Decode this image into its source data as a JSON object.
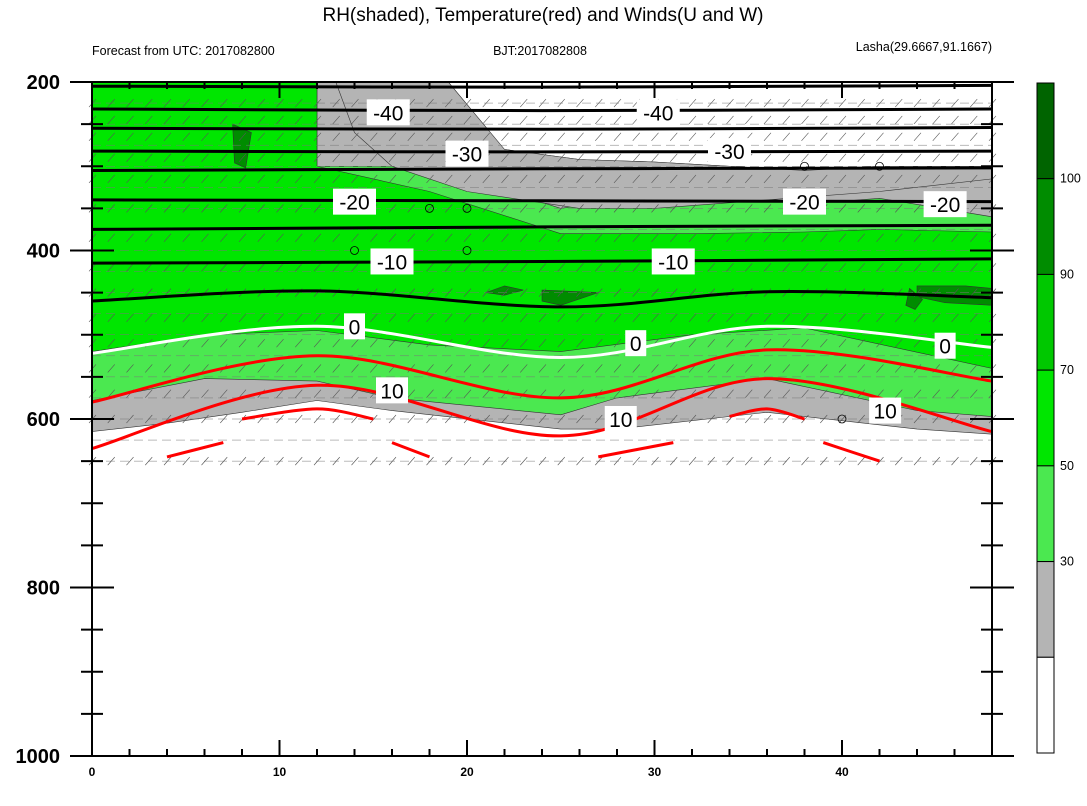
{
  "chart_data": {
    "type": "heatmap",
    "title": "RH(shaded), Temperature(red) and Winds(U and W)",
    "subtitle_left": "Forecast from UTC: 2017082800",
    "subtitle_center": "BJT:2017082808",
    "subtitle_right": "Lasha(29.6667,91.1667)",
    "x_ticks": [
      0,
      10,
      20,
      30,
      40
    ],
    "xlim": [
      0,
      48
    ],
    "y_ticks": [
      200,
      400,
      600,
      800,
      1000
    ],
    "ylim": [
      200,
      1000
    ],
    "colorbar": {
      "labels": [
        "30",
        "50",
        "70",
        "90",
        "100"
      ],
      "colors": [
        "#ffffff",
        "#b4b4b4",
        "#4be850",
        "#00e600",
        "#00c800",
        "#008c00",
        "#006400"
      ]
    },
    "temperature_contours": [
      {
        "level": -40,
        "color": "#000000",
        "points": [
          [
            0,
            205
          ],
          [
            24,
            206
          ],
          [
            48,
            204
          ]
        ]
      },
      {
        "level": -40,
        "color": "#000000",
        "points": [
          [
            0,
            232
          ],
          [
            24,
            234
          ],
          [
            48,
            232
          ]
        ]
      },
      {
        "level": -40,
        "color": "#000000",
        "points": [
          [
            0,
            255
          ],
          [
            24,
            256
          ],
          [
            48,
            254
          ]
        ]
      },
      {
        "level": -30,
        "color": "#000000",
        "points": [
          [
            0,
            282
          ],
          [
            24,
            283
          ],
          [
            48,
            282
          ]
        ]
      },
      {
        "level": -30,
        "color": "#000000",
        "points": [
          [
            0,
            305
          ],
          [
            24,
            303
          ],
          [
            48,
            302
          ]
        ]
      },
      {
        "level": -20,
        "color": "#000000",
        "points": [
          [
            0,
            340
          ],
          [
            24,
            341
          ],
          [
            48,
            342
          ]
        ]
      },
      {
        "level": -20,
        "color": "#000000",
        "points": [
          [
            0,
            375
          ],
          [
            24,
            372
          ],
          [
            48,
            370
          ]
        ]
      },
      {
        "level": -10,
        "color": "#000000",
        "points": [
          [
            0,
            415
          ],
          [
            24,
            413
          ],
          [
            48,
            410
          ]
        ]
      },
      {
        "level": -10,
        "color": "#000000",
        "points": [
          [
            0,
            460
          ],
          [
            12,
            448
          ],
          [
            25,
            467
          ],
          [
            36,
            449
          ],
          [
            48,
            456
          ]
        ]
      },
      {
        "level": 0,
        "color": "#ffffff",
        "points": [
          [
            0,
            522
          ],
          [
            12,
            490
          ],
          [
            25,
            527
          ],
          [
            36,
            490
          ],
          [
            48,
            515
          ]
        ]
      },
      {
        "level": 10,
        "color": "#ff0000",
        "points": [
          [
            0,
            580
          ],
          [
            12,
            525
          ],
          [
            25,
            575
          ],
          [
            36,
            518
          ],
          [
            48,
            555
          ]
        ]
      },
      {
        "level": 10,
        "color": "#ff0000",
        "points": [
          [
            0,
            635
          ],
          [
            12,
            560
          ],
          [
            25,
            620
          ],
          [
            36,
            552
          ],
          [
            48,
            615
          ]
        ]
      },
      {
        "level": 10,
        "color": "#ff0000",
        "points": [
          [
            8,
            600
          ],
          [
            12,
            588
          ],
          [
            15,
            600
          ]
        ]
      },
      {
        "level": 10,
        "color": "#ff0000",
        "points": [
          [
            34,
            597
          ],
          [
            36,
            588
          ],
          [
            38,
            600
          ]
        ]
      },
      {
        "level": 10,
        "color": "#ff0000",
        "points": [
          [
            4,
            645
          ],
          [
            7,
            628
          ]
        ]
      },
      {
        "level": 10,
        "color": "#ff0000",
        "points": [
          [
            16,
            628
          ],
          [
            18,
            645
          ]
        ]
      },
      {
        "level": 10,
        "color": "#ff0000",
        "points": [
          [
            27,
            645
          ],
          [
            31,
            628
          ]
        ]
      },
      {
        "level": 10,
        "color": "#ff0000",
        "points": [
          [
            39,
            628
          ],
          [
            42,
            650
          ]
        ]
      }
    ],
    "contour_labels": [
      {
        "text": "-40",
        "x": 15.8,
        "y": 236
      },
      {
        "text": "-40",
        "x": 30.2,
        "y": 236
      },
      {
        "text": "-30",
        "x": 20,
        "y": 285
      },
      {
        "text": "-30",
        "x": 34,
        "y": 282
      },
      {
        "text": "-20",
        "x": 14,
        "y": 342
      },
      {
        "text": "-20",
        "x": 38,
        "y": 342
      },
      {
        "text": "-20",
        "x": 45.5,
        "y": 345
      },
      {
        "text": "-10",
        "x": 16,
        "y": 413
      },
      {
        "text": "-10",
        "x": 31,
        "y": 413
      },
      {
        "text": "0",
        "x": 14,
        "y": 490
      },
      {
        "text": "0",
        "x": 29,
        "y": 510
      },
      {
        "text": "0",
        "x": 45.5,
        "y": 513
      },
      {
        "text": "10",
        "x": 16,
        "y": 566
      },
      {
        "text": "10",
        "x": 28.2,
        "y": 600
      },
      {
        "text": "10",
        "x": 42.3,
        "y": 590
      }
    ],
    "rh_regions": [
      {
        "level": "30-50",
        "color": "#b4b4b4",
        "points": [
          [
            0,
            200
          ],
          [
            48,
            200
          ],
          [
            48,
            618
          ],
          [
            44,
            612
          ],
          [
            36,
            592
          ],
          [
            28,
            612
          ],
          [
            25,
            612
          ],
          [
            16,
            590
          ],
          [
            12,
            578
          ],
          [
            8,
            592
          ],
          [
            4,
            605
          ],
          [
            0,
            615
          ]
        ]
      },
      {
        "level": "50-70",
        "color": "#4be850",
        "points": [
          [
            0,
            200
          ],
          [
            12,
            200
          ],
          [
            12,
            240
          ],
          [
            12,
            300
          ],
          [
            18,
            300
          ],
          [
            25,
            350
          ],
          [
            32,
            325
          ],
          [
            38,
            345
          ],
          [
            42,
            338
          ],
          [
            48,
            360
          ],
          [
            48,
            597
          ],
          [
            44,
            590
          ],
          [
            36,
            552
          ],
          [
            28,
            575
          ],
          [
            25,
            595
          ],
          [
            16,
            575
          ],
          [
            12,
            555
          ],
          [
            6,
            552
          ],
          [
            0,
            578
          ]
        ]
      },
      {
        "level": "70-90",
        "color": "#00e600",
        "points": [
          [
            0,
            200
          ],
          [
            12,
            200
          ],
          [
            12,
            240
          ],
          [
            12,
            300
          ],
          [
            18,
            330
          ],
          [
            25,
            380
          ],
          [
            32,
            380
          ],
          [
            38,
            378
          ],
          [
            42,
            375
          ],
          [
            48,
            378
          ],
          [
            48,
            540
          ],
          [
            38,
            492
          ],
          [
            32,
            500
          ],
          [
            25,
            520
          ],
          [
            18,
            512
          ],
          [
            12,
            495
          ],
          [
            6,
            500
          ],
          [
            0,
            520
          ]
        ]
      },
      {
        "level": "90-100",
        "color": "#008c00",
        "points": [
          [
            22,
            442
          ],
          [
            23,
            447
          ],
          [
            22,
            453
          ],
          [
            21,
            450
          ]
        ]
      },
      {
        "level": "90-100",
        "color": "#008c00",
        "points": [
          [
            24,
            447
          ],
          [
            27,
            450
          ],
          [
            25,
            465
          ],
          [
            24,
            460
          ]
        ]
      },
      {
        "level": "90-100",
        "color": "#008c00",
        "points": [
          [
            44,
            442
          ],
          [
            46.6,
            442
          ],
          [
            48,
            445
          ],
          [
            48,
            465
          ],
          [
            45.5,
            462
          ],
          [
            44,
            455
          ]
        ]
      },
      {
        "level": "90-100",
        "color": "#008c00",
        "points": [
          [
            43.6,
            445
          ],
          [
            44.3,
            458
          ],
          [
            43.9,
            470
          ],
          [
            43.4,
            465
          ]
        ]
      },
      {
        "level": "90-100",
        "color": "#008c00",
        "points": [
          [
            7.5,
            250
          ],
          [
            8.5,
            260
          ],
          [
            8.2,
            302
          ],
          [
            7.6,
            296
          ]
        ]
      }
    ],
    "rh_background_zone": {
      "top": 200,
      "bottom": 650
    },
    "wind_barbs": {
      "rows": [
        225,
        245,
        265,
        290,
        315,
        350,
        385,
        420,
        450,
        480,
        510,
        540,
        570,
        600,
        650
      ],
      "x_step": 1
    }
  }
}
